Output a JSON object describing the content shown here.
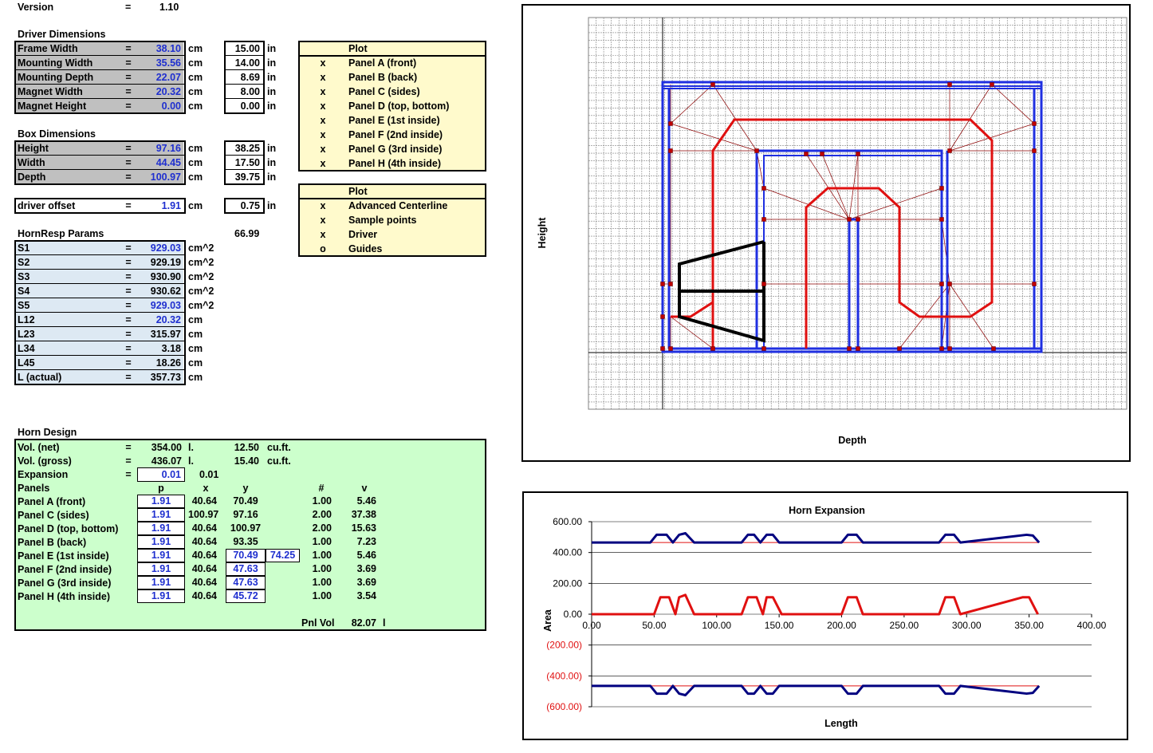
{
  "version": {
    "label": "Version",
    "eq": "=",
    "value": "1.10"
  },
  "driver": {
    "title": "Driver Dimensions",
    "rows": [
      {
        "label": "Frame Width",
        "eq": "=",
        "cm": "38.10",
        "unit": "cm",
        "inch": "15.00",
        "iunit": "in"
      },
      {
        "label": "Mounting Width",
        "eq": "=",
        "cm": "35.56",
        "unit": "cm",
        "inch": "14.00",
        "iunit": "in"
      },
      {
        "label": "Mounting Depth",
        "eq": "=",
        "cm": "22.07",
        "unit": "cm",
        "inch": "8.69",
        "iunit": "in"
      },
      {
        "label": "Magnet Width",
        "eq": "=",
        "cm": "20.32",
        "unit": "cm",
        "inch": "8.00",
        "iunit": "in"
      },
      {
        "label": "Magnet Height",
        "eq": "=",
        "cm": "0.00",
        "unit": "cm",
        "inch": "0.00",
        "iunit": "in"
      }
    ]
  },
  "box": {
    "title": "Box Dimensions",
    "rows": [
      {
        "label": "Height",
        "eq": "=",
        "cm": "97.16",
        "unit": "cm",
        "inch": "38.25",
        "iunit": "in"
      },
      {
        "label": "Width",
        "eq": "=",
        "cm": "44.45",
        "unit": "cm",
        "inch": "17.50",
        "iunit": "in"
      },
      {
        "label": "Depth",
        "eq": "=",
        "cm": "100.97",
        "unit": "cm",
        "inch": "39.75",
        "iunit": "in"
      }
    ]
  },
  "offset": {
    "label": "driver offset",
    "eq": "=",
    "cm": "1.91",
    "unit": "cm",
    "inch": "0.75",
    "iunit": "in"
  },
  "hornresp": {
    "title": "HornResp Params",
    "extra": "66.99",
    "rows": [
      {
        "label": "S1",
        "eq": "=",
        "value": "929.03",
        "unit": "cm^2",
        "input": true
      },
      {
        "label": "S2",
        "eq": "=",
        "value": "929.19",
        "unit": "cm^2",
        "input": false
      },
      {
        "label": "S3",
        "eq": "=",
        "value": "930.90",
        "unit": "cm^2",
        "input": false
      },
      {
        "label": "S4",
        "eq": "=",
        "value": "930.62",
        "unit": "cm^2",
        "input": false
      },
      {
        "label": "S5",
        "eq": "=",
        "value": "929.03",
        "unit": "cm^2",
        "input": true
      },
      {
        "label": "L12",
        "eq": "=",
        "value": "20.32",
        "unit": "cm",
        "input": true
      },
      {
        "label": "L23",
        "eq": "=",
        "value": "315.97",
        "unit": "cm",
        "input": false
      },
      {
        "label": "L34",
        "eq": "=",
        "value": "3.18",
        "unit": "cm",
        "input": false
      },
      {
        "label": "L45",
        "eq": "=",
        "value": "18.26",
        "unit": "cm",
        "input": false
      },
      {
        "label": "L (actual)",
        "eq": "=",
        "value": "357.73",
        "unit": "cm",
        "input": false
      }
    ]
  },
  "plot1": {
    "title": "Plot",
    "rows": [
      {
        "mark": "x",
        "label": "Panel A (front)"
      },
      {
        "mark": "x",
        "label": "Panel B (back)"
      },
      {
        "mark": "x",
        "label": "Panel C (sides)"
      },
      {
        "mark": "x",
        "label": "Panel D (top, bottom)"
      },
      {
        "mark": "x",
        "label": "Panel E (1st inside)"
      },
      {
        "mark": "x",
        "label": "Panel F (2nd inside)"
      },
      {
        "mark": "x",
        "label": "Panel G (3rd inside)"
      },
      {
        "mark": "x",
        "label": "Panel H (4th inside)"
      }
    ]
  },
  "plot2": {
    "title": "Plot",
    "rows": [
      {
        "mark": "x",
        "label": "Advanced Centerline"
      },
      {
        "mark": "x",
        "label": "Sample points"
      },
      {
        "mark": "x",
        "label": "Driver"
      },
      {
        "mark": "o",
        "label": "Guides"
      }
    ]
  },
  "horn": {
    "title": "Horn Design",
    "vol_net": {
      "label": "Vol. (net)",
      "eq": "=",
      "value": "354.00",
      "unit": "l.",
      "ft": "12.50",
      "funit": "cu.ft."
    },
    "vol_gross": {
      "label": "Vol. (gross)",
      "eq": "=",
      "value": "436.07",
      "unit": "l.",
      "ft": "15.40",
      "funit": "cu.ft."
    },
    "expansion": {
      "label": "Expansion",
      "eq": "=",
      "input": "0.01",
      "value": "0.01"
    },
    "headers": {
      "label": "Panels",
      "p": "p",
      "x": "x",
      "y": "y",
      "n": "#",
      "v": "v"
    },
    "panels": [
      {
        "label": "Panel A (front)",
        "p": "1.91",
        "x": "40.64",
        "y": "70.49",
        "yin": false,
        "extra": "",
        "n": "1.00",
        "v": "5.46"
      },
      {
        "label": "Panel C (sides)",
        "p": "1.91",
        "x": "100.97",
        "y": "97.16",
        "yin": false,
        "extra": "",
        "n": "2.00",
        "v": "37.38"
      },
      {
        "label": "Panel D (top, bottom)",
        "p": "1.91",
        "x": "40.64",
        "y": "100.97",
        "yin": false,
        "extra": "",
        "n": "2.00",
        "v": "15.63"
      },
      {
        "label": "Panel B (back)",
        "p": "1.91",
        "x": "40.64",
        "y": "93.35",
        "yin": false,
        "extra": "",
        "n": "1.00",
        "v": "7.23"
      },
      {
        "label": "Panel E (1st inside)",
        "p": "1.91",
        "x": "40.64",
        "y": "70.49",
        "yin": true,
        "extra": "74.25",
        "n": "1.00",
        "v": "5.46"
      },
      {
        "label": "Panel F (2nd inside)",
        "p": "1.91",
        "x": "40.64",
        "y": "47.63",
        "yin": true,
        "extra": "",
        "n": "1.00",
        "v": "3.69"
      },
      {
        "label": "Panel G (3rd inside)",
        "p": "1.91",
        "x": "40.64",
        "y": "47.63",
        "yin": true,
        "extra": "",
        "n": "1.00",
        "v": "3.69"
      },
      {
        "label": "Panel H (4th inside)",
        "p": "1.91",
        "x": "40.64",
        "y": "45.72",
        "yin": true,
        "extra": "",
        "n": "1.00",
        "v": "3.54"
      }
    ],
    "pnl_vol": {
      "label": "Pnl Vol",
      "value": "82.07",
      "unit": "l"
    }
  },
  "layout_chart": {
    "xlabel": "Depth",
    "ylabel": "Height"
  },
  "chart_data": {
    "type": "line",
    "title": "Horn Expansion",
    "xlabel": "Length",
    "ylabel": "Area",
    "xlim": [
      0,
      400
    ],
    "ylim": [
      -600,
      600
    ],
    "xticks": [
      "0.00",
      "50.00",
      "100.00",
      "150.00",
      "200.00",
      "250.00",
      "300.00",
      "350.00",
      "400.00"
    ],
    "yticks": [
      "600.00",
      "400.00",
      "200.00",
      "0.00",
      "(200.00)",
      "(400.00)",
      "(600.00)"
    ],
    "series": [
      {
        "color": "#000080",
        "x": [
          0,
          47,
          52,
          60,
          65,
          70,
          75,
          82,
          88,
          120,
          125,
          130,
          135,
          140,
          145,
          150,
          155,
          200,
          205,
          212,
          217,
          278,
          283,
          290,
          295,
          348,
          353,
          358
        ],
        "y": [
          465,
          465,
          515,
          515,
          465,
          515,
          525,
          465,
          465,
          465,
          515,
          515,
          465,
          515,
          515,
          465,
          465,
          465,
          515,
          515,
          465,
          465,
          515,
          515,
          465,
          515,
          510,
          465
        ]
      },
      {
        "color": "#000080",
        "x": [
          0,
          47,
          52,
          60,
          65,
          70,
          75,
          82,
          88,
          120,
          125,
          130,
          135,
          140,
          145,
          150,
          155,
          200,
          205,
          212,
          217,
          278,
          283,
          290,
          295,
          348,
          353,
          358
        ],
        "y": [
          -465,
          -465,
          -515,
          -515,
          -465,
          -515,
          -525,
          -465,
          -465,
          -465,
          -515,
          -515,
          -465,
          -515,
          -515,
          -465,
          -465,
          -465,
          -515,
          -515,
          -465,
          -465,
          -515,
          -515,
          -465,
          -515,
          -510,
          -465
        ]
      },
      {
        "color": "#e01010",
        "x": [
          0,
          50,
          55,
          62,
          67,
          70,
          75,
          82,
          88,
          120,
          125,
          132,
          137,
          140,
          145,
          152,
          155,
          200,
          205,
          212,
          217,
          278,
          283,
          290,
          295,
          345,
          350,
          357
        ],
        "y": [
          0,
          0,
          110,
          110,
          0,
          110,
          125,
          0,
          0,
          0,
          110,
          110,
          0,
          110,
          110,
          0,
          0,
          0,
          110,
          110,
          0,
          0,
          110,
          110,
          0,
          110,
          110,
          0
        ]
      },
      {
        "color": "#e01010",
        "x": [
          0,
          358
        ],
        "y": [
          465,
          465
        ]
      },
      {
        "color": "#e01010",
        "x": [
          0,
          358
        ],
        "y": [
          -465,
          -465
        ]
      }
    ]
  },
  "colors": {
    "input_blue": "#1f2fcf",
    "gray": "#c0c0c0",
    "light_blue": "#dde9f3",
    "yellow": "#fffacc",
    "green": "#ccffcc",
    "red": "#e01010",
    "navy": "#000080"
  }
}
